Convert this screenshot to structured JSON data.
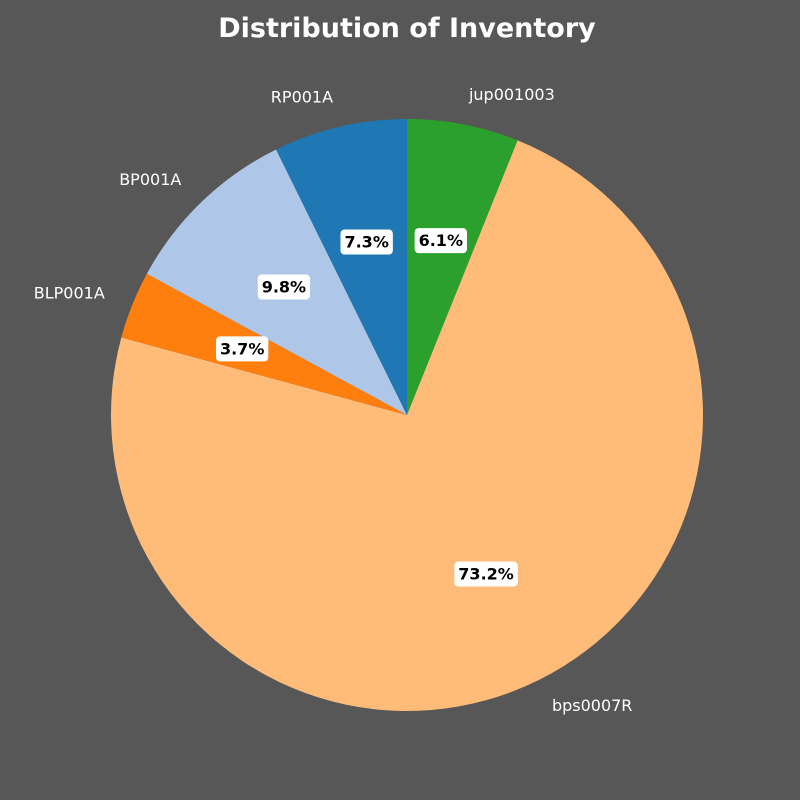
{
  "chart_data": {
    "type": "pie",
    "title": "Distribution of Inventory",
    "start_angle_deg": 90,
    "direction": "clockwise",
    "slices": [
      {
        "label": "jup001003",
        "value": 6.1,
        "pct_label": "6.1%",
        "color": "#2ca02c"
      },
      {
        "label": "bps0007R",
        "value": 73.2,
        "pct_label": "73.2%",
        "color": "#ffbb78"
      },
      {
        "label": "BLP001A",
        "value": 3.7,
        "pct_label": "3.7%",
        "color": "#ff7f0e"
      },
      {
        "label": "BP001A",
        "value": 9.8,
        "pct_label": "9.8%",
        "color": "#aec7e8"
      },
      {
        "label": "RP001A",
        "value": 7.3,
        "pct_label": "7.3%",
        "color": "#1f77b4"
      }
    ]
  },
  "theme": {
    "background": "#575757",
    "text_color": "#ffffff"
  }
}
